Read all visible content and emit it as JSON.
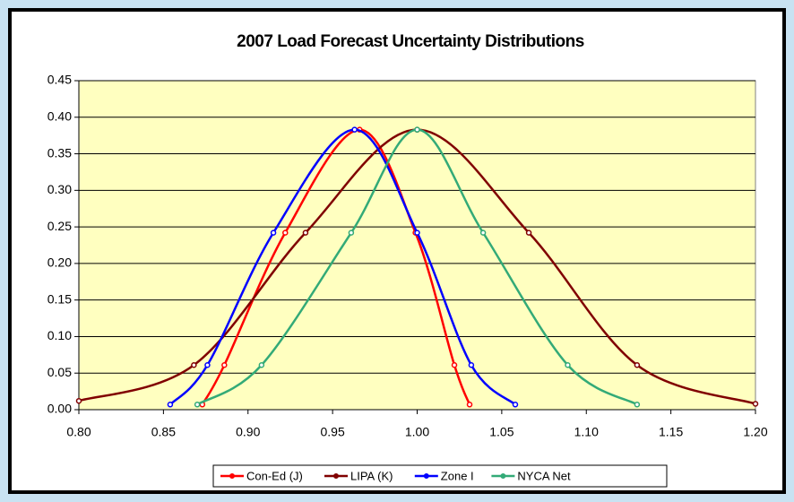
{
  "chart_data": {
    "type": "line",
    "title": "2007 Load Forecast Uncertainty Distributions",
    "series": [
      {
        "name": "Con-Ed (J)",
        "color": "#ff0000",
        "x": [
          0.873,
          0.886,
          0.922,
          0.966,
          0.999,
          1.022,
          1.031
        ],
        "values": [
          0.007,
          0.061,
          0.242,
          0.383,
          0.242,
          0.061,
          0.007
        ]
      },
      {
        "name": "LIPA (K)",
        "color": "#800000",
        "x": [
          0.8,
          0.868,
          0.934,
          1.0,
          1.066,
          1.13,
          1.2
        ],
        "values": [
          0.012,
          0.061,
          0.242,
          0.383,
          0.242,
          0.061,
          0.008
        ]
      },
      {
        "name": "Zone I",
        "color": "#0000ff",
        "x": [
          0.854,
          0.876,
          0.915,
          0.963,
          1.0,
          1.032,
          1.058
        ],
        "values": [
          0.007,
          0.061,
          0.242,
          0.383,
          0.242,
          0.061,
          0.007
        ]
      },
      {
        "name": "NYCA Net",
        "color": "#33aa77",
        "x": [
          0.87,
          0.908,
          0.961,
          1.0,
          1.039,
          1.089,
          1.13
        ],
        "values": [
          0.007,
          0.061,
          0.242,
          0.383,
          0.242,
          0.061,
          0.007
        ]
      }
    ],
    "xlim": [
      0.8,
      1.2
    ],
    "xticks": [
      {
        "value": 0.8,
        "label": "0.80"
      },
      0.85,
      {
        "value": 0.9,
        "label": "0.90"
      },
      0.95,
      {
        "value": 1.0,
        "label": "1.00"
      },
      1.05,
      {
        "value": 1.1,
        "label": "1.10"
      },
      1.15,
      {
        "value": 1.2,
        "label": "1.20"
      }
    ],
    "ylim": [
      0,
      0.45
    ],
    "yticks": [
      {
        "value": 0,
        "label": "0.00"
      },
      0.05,
      {
        "value": 0.1,
        "label": "0.10"
      },
      0.15,
      {
        "value": 0.2,
        "label": "0.20"
      },
      0.25,
      {
        "value": 0.3,
        "label": "0.30"
      },
      0.35,
      {
        "value": 0.4,
        "label": "0.40"
      },
      0.45
    ],
    "grid": true,
    "legend": "bottom"
  }
}
